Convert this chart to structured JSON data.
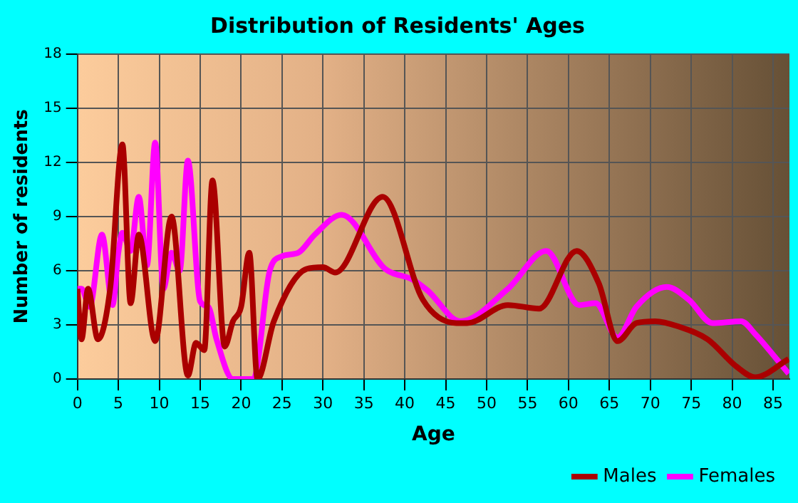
{
  "chart_data": {
    "type": "line",
    "title": "Distribution of Residents' Ages",
    "xlabel": "Age",
    "ylabel": "Number of residents",
    "xlim": [
      0,
      87
    ],
    "xticks": [
      0,
      5,
      10,
      15,
      20,
      25,
      30,
      35,
      40,
      45,
      50,
      55,
      60,
      65,
      70,
      75,
      80,
      85
    ],
    "ylim": [
      0,
      18
    ],
    "yticks": [
      0,
      3,
      6,
      9,
      12,
      15,
      18
    ],
    "grid": true,
    "legend": "bottom right",
    "marker": "none",
    "line_style": "solid",
    "series": [
      {
        "name": "Males",
        "color": "#aa0000",
        "x": [
          0,
          0.5,
          1.3,
          2.5,
          4,
          5.5,
          6.5,
          7.5,
          9.5,
          11.5,
          13.5,
          14.5,
          15.5,
          16.5,
          18,
          19,
          20,
          21,
          22,
          24,
          28,
          30,
          31.5,
          37.3,
          42.2,
          46.3,
          47.6,
          52.6,
          56.4,
          61,
          63.7,
          66,
          68.3,
          70.6,
          73.5,
          77,
          80.5,
          82.8,
          86.9
        ],
        "values": [
          5,
          2.2,
          5,
          2.2,
          5,
          13,
          4.2,
          8,
          2.1,
          9,
          0.2,
          2,
          1.6,
          11,
          1.8,
          3.2,
          4,
          7,
          0,
          3.2,
          6.1,
          6.2,
          5.9,
          10.1,
          4.4,
          3.1,
          3.1,
          4.1,
          3.9,
          7.1,
          5.3,
          2.1,
          3.1,
          3.2,
          2.9,
          2.2,
          0.7,
          0.1,
          1.1
        ]
      },
      {
        "name": "Females",
        "color": "#ff00ff",
        "x": [
          0,
          0.5,
          1.5,
          3,
          4.3,
          5,
          5.5,
          6.5,
          7.5,
          8.5,
          9.5,
          10.5,
          11.5,
          12.5,
          13.5,
          15,
          16,
          17,
          19,
          20.5,
          21.5,
          23.5,
          25,
          27,
          29,
          32.3,
          37.6,
          41,
          42.8,
          46.8,
          52.6,
          57.3,
          61.3,
          63.3,
          66,
          68.3,
          72,
          74.7,
          77.6,
          81.1,
          82.8,
          86.9
        ],
        "values": [
          5,
          5,
          4,
          8,
          4.1,
          7,
          8.1,
          7.1,
          10.1,
          6.3,
          13.1,
          5,
          7,
          6,
          12.1,
          4.3,
          4,
          2.2,
          0,
          0,
          0,
          6,
          6.8,
          7,
          8,
          9.1,
          6.1,
          5.5,
          4.9,
          3.2,
          5,
          7.1,
          4.1,
          4.2,
          2.3,
          4,
          5.1,
          4.4,
          3.1,
          3.2,
          2.5,
          0.3
        ]
      }
    ]
  }
}
